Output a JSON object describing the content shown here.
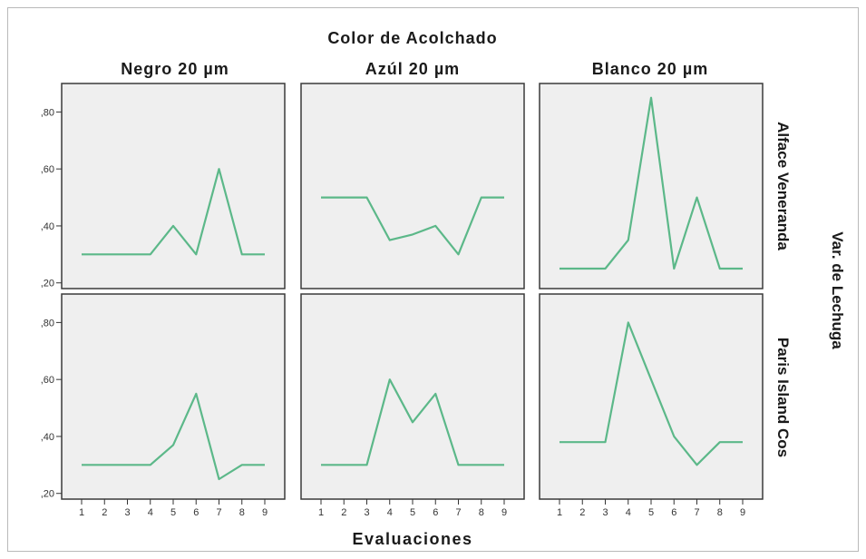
{
  "chart_data": {
    "type": "line",
    "title": "Color de Acolchado",
    "xlabel": "Evaluaciones",
    "row_label": "Var. de Lechuga",
    "columns": [
      "Negro 20 µm",
      "Azúl 20 µm",
      "Blanco 20 µm"
    ],
    "rows": [
      "Alface Veneranda",
      "Paris Island Cos"
    ],
    "x": [
      1,
      2,
      3,
      4,
      5,
      6,
      7,
      8,
      9
    ],
    "x_tick_labels": [
      "1",
      "2",
      "3",
      "4",
      "5",
      "6",
      "7",
      "8",
      "9"
    ],
    "y_tick_labels": [
      ",20",
      ",40",
      ",60",
      ",80"
    ],
    "y_ticks": [
      0.2,
      0.4,
      0.6,
      0.8
    ],
    "ylim": [
      0.18,
      0.9
    ],
    "line_color": "#5cb889",
    "panel_background": "#efefef",
    "panels": [
      {
        "row": "Alface Veneranda",
        "column": "Negro 20 µm",
        "values": [
          0.3,
          0.3,
          0.3,
          0.3,
          0.4,
          0.3,
          0.6,
          0.3,
          0.3
        ]
      },
      {
        "row": "Alface Veneranda",
        "column": "Azúl 20 µm",
        "values": [
          0.5,
          0.5,
          0.5,
          0.35,
          0.37,
          0.4,
          0.3,
          0.5,
          0.5
        ]
      },
      {
        "row": "Alface Veneranda",
        "column": "Blanco 20 µm",
        "values": [
          0.25,
          0.25,
          0.25,
          0.35,
          0.85,
          0.25,
          0.5,
          0.25,
          0.25
        ]
      },
      {
        "row": "Paris Island Cos",
        "column": "Negro 20 µm",
        "values": [
          0.3,
          0.3,
          0.3,
          0.3,
          0.37,
          0.55,
          0.25,
          0.3,
          0.3
        ]
      },
      {
        "row": "Paris Island Cos",
        "column": "Azúl 20 µm",
        "values": [
          0.3,
          0.3,
          0.3,
          0.6,
          0.45,
          0.55,
          0.3,
          0.3,
          0.3
        ]
      },
      {
        "row": "Paris Island Cos",
        "column": "Blanco 20 µm",
        "values": [
          0.38,
          0.38,
          0.38,
          0.8,
          0.6,
          0.4,
          0.3,
          0.38,
          0.38
        ]
      }
    ]
  }
}
